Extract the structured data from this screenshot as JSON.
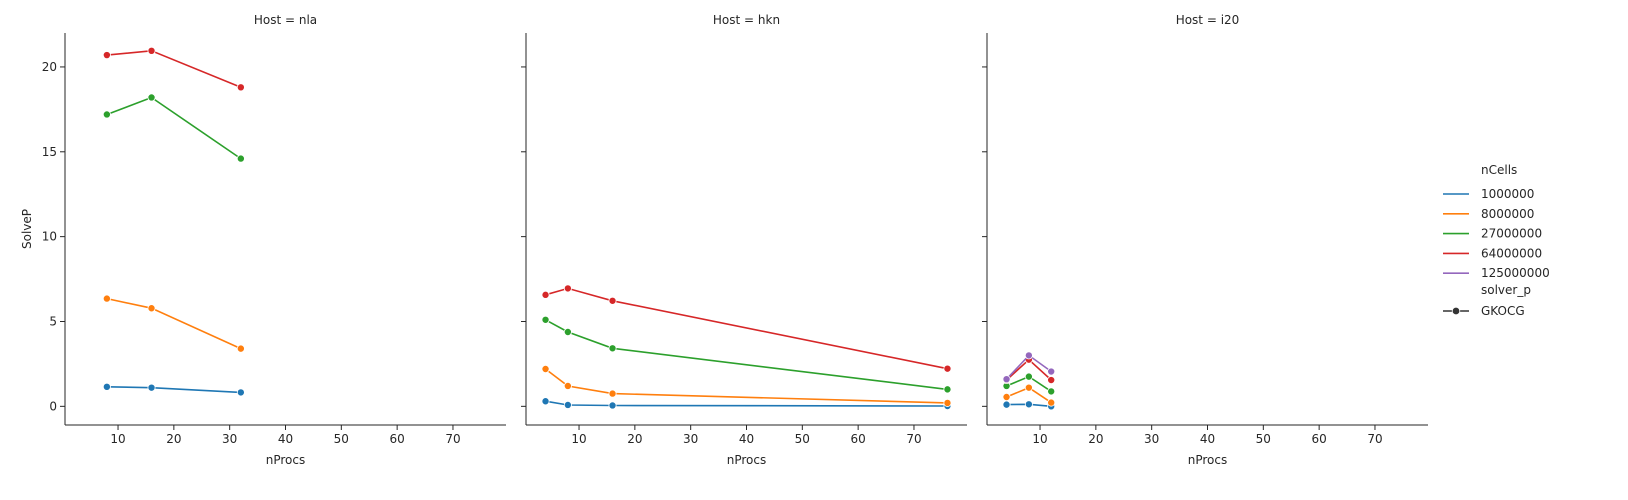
{
  "chart_data": {
    "type": "line",
    "facet_variable": "Host",
    "shared_axes": {
      "xlabel": "nProcs",
      "ylabel": "SolveP",
      "xlim": [
        0.5,
        79.5
      ],
      "ylim": [
        -1.1,
        22.0
      ],
      "xticks": [
        10,
        20,
        30,
        40,
        50,
        60,
        70
      ],
      "yticks": [
        0,
        5,
        10,
        15,
        20
      ]
    },
    "legend": {
      "placement": "right",
      "hue_title": "nCells",
      "style_title": "solver_p",
      "style_entry": "GKOCG",
      "entries": [
        {
          "label": "1000000",
          "color": "#1f77b4"
        },
        {
          "label": "8000000",
          "color": "#ff7f0e"
        },
        {
          "label": "27000000",
          "color": "#2ca02c"
        },
        {
          "label": "64000000",
          "color": "#d62728"
        },
        {
          "label": "125000000",
          "color": "#9467bd"
        }
      ]
    },
    "panels": [
      {
        "title": "Host = nla",
        "series": [
          {
            "name": "1000000",
            "color": "#1f77b4",
            "x": [
              8,
              16,
              32
            ],
            "y": [
              1.15,
              1.1,
              0.82
            ]
          },
          {
            "name": "8000000",
            "color": "#ff7f0e",
            "x": [
              8,
              16,
              32
            ],
            "y": [
              6.35,
              5.78,
              3.4
            ]
          },
          {
            "name": "27000000",
            "color": "#2ca02c",
            "x": [
              8,
              16,
              32
            ],
            "y": [
              17.2,
              18.2,
              14.6
            ]
          },
          {
            "name": "64000000",
            "color": "#d62728",
            "x": [
              8,
              16,
              32
            ],
            "y": [
              20.7,
              20.95,
              18.8
            ]
          }
        ]
      },
      {
        "title": "Host = hkn",
        "series": [
          {
            "name": "1000000",
            "color": "#1f77b4",
            "x": [
              4,
              8,
              16,
              76
            ],
            "y": [
              0.3,
              0.08,
              0.05,
              0.02
            ]
          },
          {
            "name": "8000000",
            "color": "#ff7f0e",
            "x": [
              4,
              8,
              16,
              76
            ],
            "y": [
              2.2,
              1.2,
              0.75,
              0.2
            ]
          },
          {
            "name": "27000000",
            "color": "#2ca02c",
            "x": [
              4,
              8,
              16,
              76
            ],
            "y": [
              5.1,
              4.38,
              3.42,
              1.0
            ]
          },
          {
            "name": "64000000",
            "color": "#d62728",
            "x": [
              4,
              8,
              16,
              76
            ],
            "y": [
              6.57,
              6.95,
              6.22,
              2.22
            ]
          }
        ]
      },
      {
        "title": "Host = i20",
        "series": [
          {
            "name": "1000000",
            "color": "#1f77b4",
            "x": [
              4,
              8,
              12
            ],
            "y": [
              0.1,
              0.12,
              0.0
            ]
          },
          {
            "name": "8000000",
            "color": "#ff7f0e",
            "x": [
              4,
              8,
              12
            ],
            "y": [
              0.55,
              1.1,
              0.22
            ]
          },
          {
            "name": "27000000",
            "color": "#2ca02c",
            "x": [
              4,
              8,
              12
            ],
            "y": [
              1.2,
              1.75,
              0.88
            ]
          },
          {
            "name": "64000000",
            "color": "#d62728",
            "x": [
              4,
              8,
              12
            ],
            "y": [
              1.55,
              2.75,
              1.55
            ]
          },
          {
            "name": "125000000",
            "color": "#9467bd",
            "x": [
              4,
              8,
              12
            ],
            "y": [
              1.6,
              3.0,
              2.05
            ]
          }
        ]
      }
    ]
  }
}
